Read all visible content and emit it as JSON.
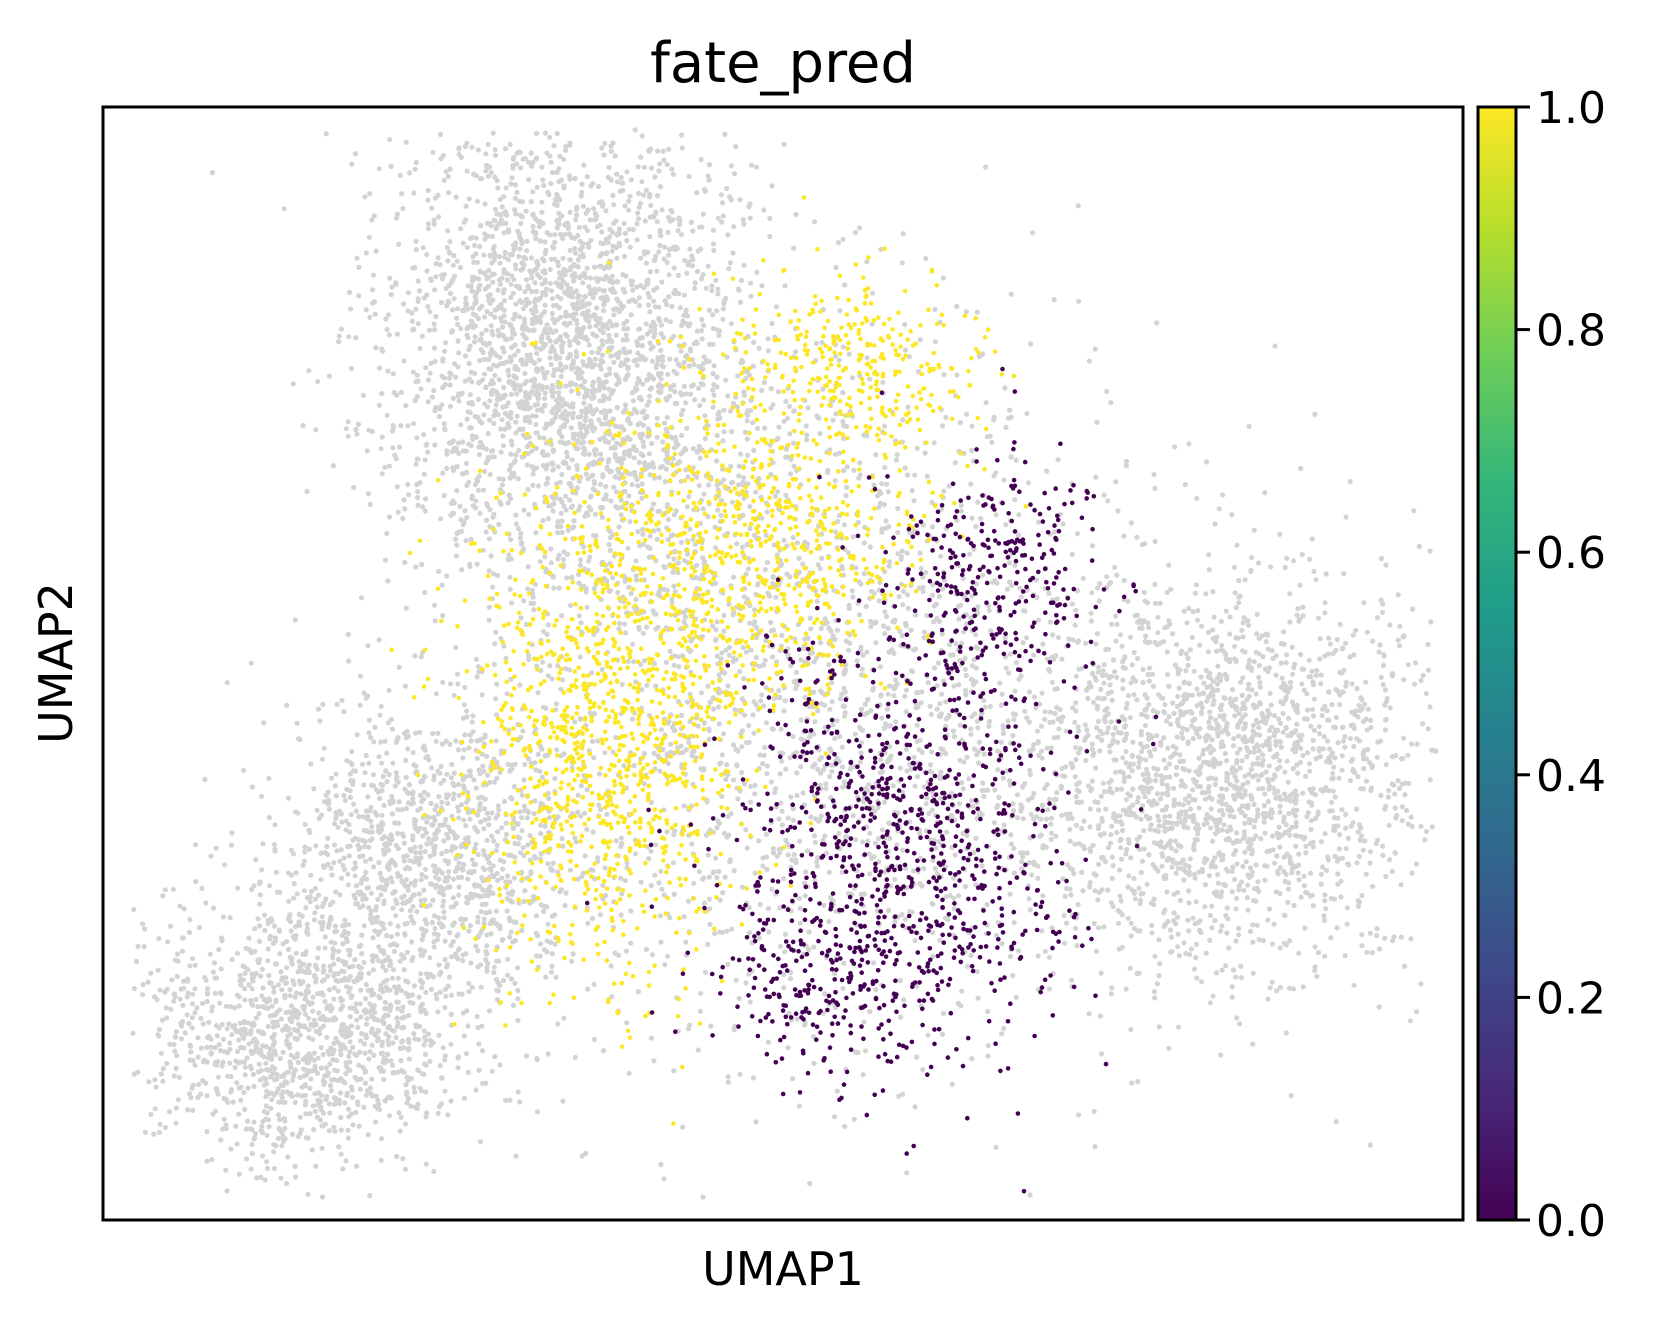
{
  "chart_data": {
    "type": "scatter",
    "title": "fate_pred",
    "xlabel": "UMAP1",
    "ylabel": "UMAP2",
    "x_ticks_shown": false,
    "y_ticks_shown": false,
    "grid": false,
    "xlim": [
      0,
      100
    ],
    "ylim": [
      0,
      100
    ],
    "missing_color": "#d3d3d3",
    "colorbar": {
      "cmap": "viridis",
      "range": [
        0.0,
        1.0
      ],
      "ticks": [
        "0.0",
        "0.2",
        "0.4",
        "0.6",
        "0.8",
        "1.0"
      ],
      "stops": [
        "#440154",
        "#482878",
        "#3e4989",
        "#31688e",
        "#26828e",
        "#1f9e89",
        "#35b779",
        "#6ece58",
        "#b5de2b",
        "#fde725"
      ]
    },
    "series": [
      {
        "name": "",
        "value": null,
        "color": "#d3d3d3",
        "note_clusters": [
          {
            "cx": 34,
            "cy": 78,
            "sx": 6.5,
            "sy": 11,
            "n": 2600
          },
          {
            "cx": 15,
            "cy": 17,
            "sx": 6,
            "sy": 6,
            "n": 1300
          },
          {
            "cx": 24,
            "cy": 33,
            "sx": 5.5,
            "sy": 7,
            "n": 1100
          },
          {
            "cx": 82,
            "cy": 40,
            "sx": 8,
            "sy": 9,
            "n": 2000
          },
          {
            "cx": 52,
            "cy": 48,
            "sx": 12,
            "sy": 16,
            "n": 2200
          }
        ]
      },
      {
        "name": "",
        "value": 1.0,
        "color": "#fde725",
        "note_clusters": [
          {
            "cx": 37,
            "cy": 44,
            "sx": 5,
            "sy": 11,
            "n": 1100
          },
          {
            "cx": 49,
            "cy": 62,
            "sx": 6,
            "sy": 8,
            "n": 700
          },
          {
            "cx": 56,
            "cy": 77,
            "sx": 4,
            "sy": 4,
            "n": 260
          }
        ]
      },
      {
        "name": "",
        "value": 0.0,
        "color": "#440154",
        "note_clusters": [
          {
            "cx": 59,
            "cy": 34,
            "sx": 6,
            "sy": 10,
            "n": 900
          },
          {
            "cx": 66,
            "cy": 58,
            "sx": 4,
            "sy": 6,
            "n": 280
          },
          {
            "cx": 52,
            "cy": 22,
            "sx": 4,
            "sy": 4,
            "n": 160
          }
        ]
      }
    ]
  }
}
